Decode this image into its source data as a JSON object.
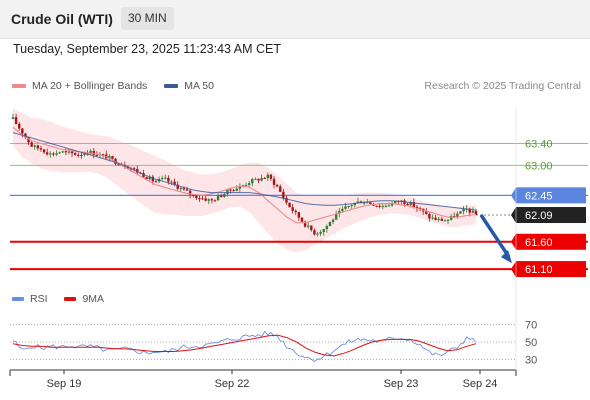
{
  "header": {
    "instrument": "Crude Oil (WTI)",
    "timeframe": "30 MIN",
    "timestamp": "Tuesday, September 23, 2025 11:23:43 AM CET"
  },
  "legend": {
    "ma20": "MA 20 + Bollinger Bands",
    "ma50": "MA 50",
    "credit": "Research © 2025 Trading Central",
    "rsi": "RSI",
    "rsi_ma": "9MA"
  },
  "colors": {
    "ma20": "#f08a8a",
    "ma50": "#3b5a9a",
    "bollinger": "#fde0e4",
    "bull": "#2e7d32",
    "bear": "#a31515",
    "green_level": "#8cc870",
    "blue_level": "#5b86e0",
    "red_level": "#ee0000",
    "arrow": "#2457a8",
    "rsi": "#6b8fe0",
    "rsi_ma": "#e01010"
  },
  "chart_data": [
    {
      "type": "candlestick",
      "x_labels": [
        "Sep 19",
        "Sep 22",
        "Sep 23",
        "Sep 24"
      ],
      "ylim": [
        60.9,
        64.05
      ],
      "levels": [
        {
          "value": 63.4,
          "label": "63.40",
          "style": "green-thin"
        },
        {
          "value": 63.0,
          "label": "63.00",
          "style": "green-thin"
        },
        {
          "value": 62.45,
          "label": "62.45",
          "style": "blue"
        },
        {
          "value": 62.09,
          "label": "62.09",
          "style": "current"
        },
        {
          "value": 61.6,
          "label": "61.60",
          "style": "red"
        },
        {
          "value": 61.1,
          "label": "61.10",
          "style": "red"
        }
      ],
      "close_path": [
        63.85,
        63.6,
        63.35,
        63.3,
        63.2,
        63.25,
        63.22,
        63.2,
        63.25,
        63.2,
        63.15,
        63.05,
        63.0,
        62.9,
        62.8,
        62.7,
        62.75,
        62.65,
        62.55,
        62.45,
        62.4,
        62.35,
        62.45,
        62.55,
        62.6,
        62.7,
        62.75,
        62.8,
        62.6,
        62.3,
        62.1,
        61.9,
        61.75,
        61.85,
        62.05,
        62.2,
        62.3,
        62.35,
        62.3,
        62.25,
        62.3,
        62.35,
        62.3,
        62.2,
        62.05,
        62.0,
        62.0,
        62.1,
        62.2,
        62.09
      ],
      "ma20": [
        63.7,
        63.55,
        63.45,
        63.4,
        63.35,
        63.3,
        63.27,
        63.25,
        63.23,
        63.2,
        63.15,
        63.05,
        62.95,
        62.85,
        62.75,
        62.65,
        62.6,
        62.55,
        62.5,
        62.47,
        62.45,
        62.48,
        62.52,
        62.58,
        62.62,
        62.6,
        62.5,
        62.35,
        62.2,
        62.05,
        61.95,
        61.95,
        62.0,
        62.05,
        62.1,
        62.15,
        62.2,
        62.25,
        62.28,
        62.3,
        62.3,
        62.28,
        62.25,
        62.2,
        62.15,
        62.1,
        62.05,
        62.05,
        62.08,
        62.1
      ],
      "ma50": [
        63.6,
        63.55,
        63.5,
        63.45,
        63.4,
        63.35,
        63.3,
        63.25,
        63.2,
        63.15,
        63.1,
        63.05,
        62.98,
        62.9,
        62.82,
        62.75,
        62.7,
        62.65,
        62.6,
        62.55,
        62.52,
        62.5,
        62.5,
        62.5,
        62.5,
        62.5,
        62.48,
        62.45,
        62.42,
        62.38,
        62.34,
        62.3,
        62.28,
        62.27,
        62.27,
        62.28,
        62.3,
        62.32,
        62.34,
        62.35,
        62.35,
        62.34,
        62.32,
        62.3,
        62.28,
        62.26,
        62.24,
        62.22,
        62.2,
        62.18
      ],
      "bollinger_width": [
        0.35,
        0.4,
        0.42,
        0.45,
        0.45,
        0.42,
        0.4,
        0.38,
        0.35,
        0.35,
        0.38,
        0.42,
        0.45,
        0.48,
        0.5,
        0.52,
        0.5,
        0.45,
        0.42,
        0.4,
        0.38,
        0.36,
        0.35,
        0.35,
        0.38,
        0.45,
        0.55,
        0.6,
        0.62,
        0.6,
        0.55,
        0.5,
        0.45,
        0.4,
        0.35,
        0.3,
        0.28,
        0.25,
        0.22,
        0.2,
        0.18,
        0.17,
        0.16,
        0.16,
        0.17,
        0.18,
        0.18,
        0.18,
        0.18,
        0.18
      ],
      "projection": {
        "from": 62.09,
        "to": 61.1
      }
    },
    {
      "type": "line",
      "name": "RSI",
      "ylim": [
        20,
        80
      ],
      "y_ticks": [
        "70",
        "50",
        "30"
      ],
      "rsi": [
        52,
        40,
        46,
        43,
        45,
        44,
        46,
        44,
        45,
        43,
        40,
        41,
        42,
        40,
        37,
        39,
        38,
        41,
        44,
        45,
        46,
        47,
        50,
        53,
        55,
        57,
        58,
        60,
        57,
        45,
        38,
        32,
        30,
        34,
        41,
        47,
        52,
        53,
        52,
        50,
        54,
        55,
        53,
        48,
        38,
        34,
        38,
        44,
        55,
        50
      ],
      "rsi_ma": [
        48,
        46,
        45,
        45,
        44,
        44,
        44,
        44,
        44,
        44,
        43,
        42,
        42,
        41,
        40,
        39,
        39,
        39,
        40,
        41,
        43,
        45,
        47,
        49,
        51,
        53,
        55,
        57,
        58,
        55,
        50,
        43,
        38,
        35,
        34,
        37,
        41,
        46,
        50,
        52,
        53,
        53,
        53,
        51,
        47,
        43,
        40,
        41,
        45,
        48
      ]
    }
  ]
}
